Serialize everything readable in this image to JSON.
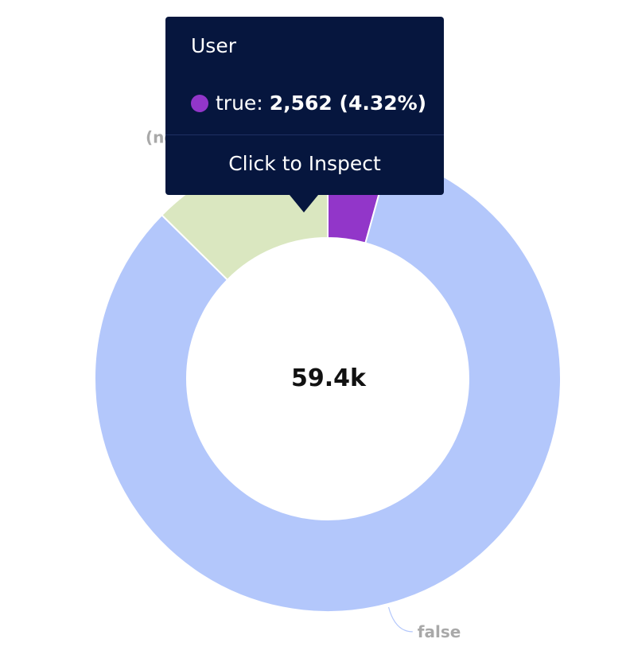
{
  "chart_data": {
    "type": "pie",
    "donut": true,
    "center_total": "59.4k",
    "slices": [
      {
        "label": "true",
        "value": 2562,
        "color": "#9236c9",
        "show_label": false
      },
      {
        "label": "false",
        "value": 49348,
        "color": "#b3c7fb",
        "show_label": true
      },
      {
        "label": "(none)",
        "value": 7490,
        "color": "#dae7c0",
        "show_label": true
      }
    ],
    "leader_colors": {
      "false": "#b3c7fb",
      "(none)": "#dae7c0"
    },
    "label_color": "#a9a9a9"
  },
  "tooltip": {
    "title": "User",
    "series_label": "true:",
    "series_value": "2,562 (4.32%)",
    "series_color": "#9236c9",
    "action_label": "Click to Inspect"
  }
}
